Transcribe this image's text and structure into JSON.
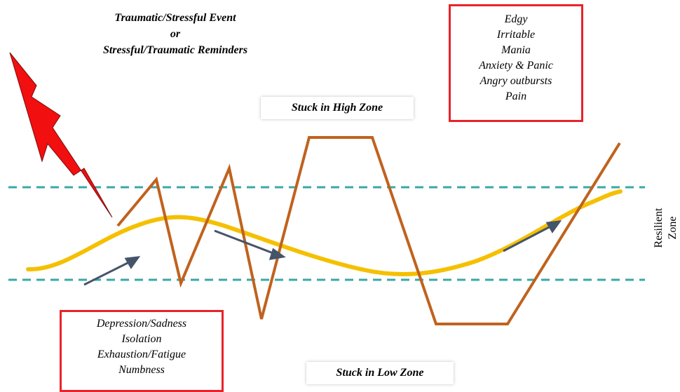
{
  "event": {
    "line1": "Traumatic/Stressful Event",
    "line2": "or",
    "line3": "Stressful/Traumatic Reminders"
  },
  "high_zone_label": "Stuck in High Zone",
  "low_zone_label": "Stuck in Low Zone",
  "high_symptoms": [
    "Edgy",
    "Irritable",
    "Mania",
    "Anxiety & Panic",
    "Angry outbursts",
    "Pain"
  ],
  "low_symptoms": [
    "Depression/Sadness",
    "Isolation",
    "Exhaustion/Fatigue",
    "Numbness"
  ],
  "resilient_zone": {
    "line1": "Resilient",
    "line2": "Zone"
  },
  "colors": {
    "boundary_line": "#3aa8a8",
    "resilient_curve": "#f5c000",
    "stuck_line": "#c0621e",
    "lightning": "#f20f0f",
    "arrow": "#44546a",
    "box_border": "#e8232a"
  },
  "icons": {
    "event": "lightning-bolt-icon",
    "trend": "arrow-icon"
  }
}
